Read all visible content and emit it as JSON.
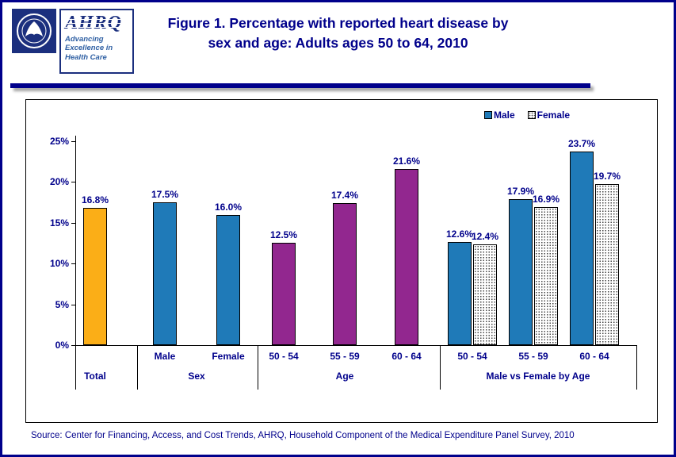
{
  "header": {
    "title_line1": "Figure 1. Percentage with reported heart disease by",
    "title_line2": "sex and age: Adults ages 50 to 64, 2010",
    "ahrq_acronym": "AHRQ",
    "ahrq_tagline": "Advancing Excellence in Health Care"
  },
  "footer": {
    "source": "Source: Center for Financing, Access, and Cost Trends, AHRQ, Household Component of the Medical Expenditure Panel Survey,  2010"
  },
  "chart_data": {
    "type": "bar",
    "title": "Figure 1. Percentage with reported heart disease by sex and age: Adults ages 50 to 64, 2010",
    "ylabel": "",
    "xlabel": "",
    "ylim": [
      0,
      25
    ],
    "ytick_labels": [
      "0%",
      "5%",
      "10%",
      "15%",
      "20%",
      "25%"
    ],
    "grid": false,
    "legend_position": "top-right",
    "legend": [
      {
        "label": "Male",
        "style": "blue"
      },
      {
        "label": "Female",
        "style": "dotted"
      }
    ],
    "colors": {
      "blue": "#1F7AB8",
      "purple": "#92278F",
      "gold": "#FBAE17",
      "navy": "#00008B"
    },
    "groups": [
      {
        "label": "Total",
        "bars": [
          {
            "category": "Total",
            "series": "Total",
            "value": 16.8,
            "display": "16.8%",
            "style": "gold"
          }
        ]
      },
      {
        "label": "Sex",
        "bars": [
          {
            "category": "Male",
            "series": "Sex",
            "value": 17.5,
            "display": "17.5%",
            "style": "blue"
          },
          {
            "category": "Female",
            "series": "Sex",
            "value": 16.0,
            "display": "16.0%",
            "style": "blue"
          }
        ]
      },
      {
        "label": "Age",
        "bars": [
          {
            "category": "50 - 54",
            "series": "Age",
            "value": 12.5,
            "display": "12.5%",
            "style": "purple"
          },
          {
            "category": "55 - 59",
            "series": "Age",
            "value": 17.4,
            "display": "17.4%",
            "style": "purple"
          },
          {
            "category": "60 - 64",
            "series": "Age",
            "value": 21.6,
            "display": "21.6%",
            "style": "purple"
          }
        ]
      },
      {
        "label": "Male vs Female by Age",
        "bars": [
          {
            "category": "50 - 54",
            "series": "Male",
            "value": 12.6,
            "display": "12.6%",
            "style": "blue"
          },
          {
            "category": "50 - 54",
            "series": "Female",
            "value": 12.4,
            "display": "12.4%",
            "style": "dotted"
          },
          {
            "category": "55 - 59",
            "series": "Male",
            "value": 17.9,
            "display": "17.9%",
            "style": "blue"
          },
          {
            "category": "55 - 59",
            "series": "Female",
            "value": 16.9,
            "display": "16.9%",
            "style": "dotted"
          },
          {
            "category": "60 - 64",
            "series": "Male",
            "value": 23.7,
            "display": "23.7%",
            "style": "blue"
          },
          {
            "category": "60 - 64",
            "series": "Female",
            "value": 19.7,
            "display": "19.7%",
            "style": "dotted"
          }
        ]
      }
    ],
    "x_categories": [
      "Male",
      "Female",
      "50 - 54",
      "55 - 59",
      "60 - 64",
      "50 - 54",
      "55 - 59",
      "60 - 64"
    ],
    "group_labels": [
      "Total",
      "Sex",
      "Age",
      "Male vs Female by Age"
    ]
  }
}
